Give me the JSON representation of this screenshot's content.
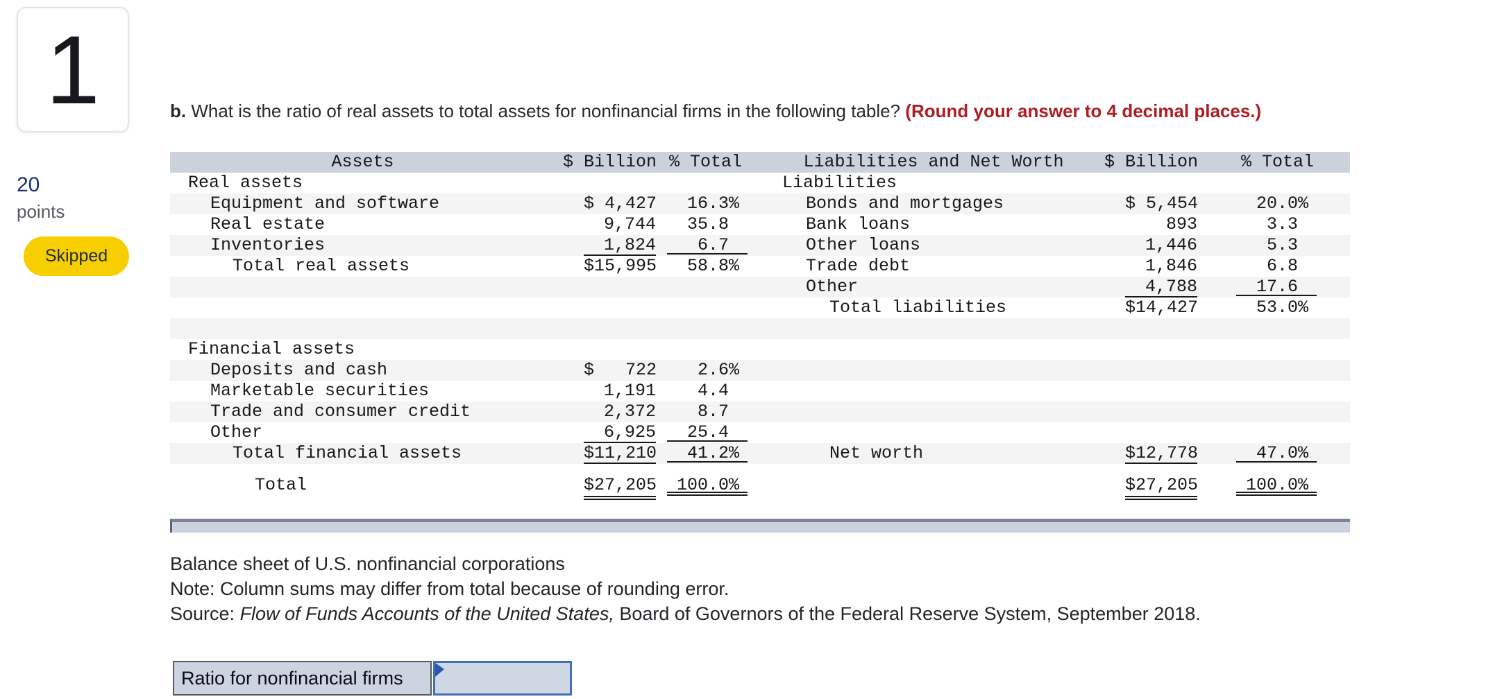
{
  "sidebar": {
    "question_number": "1",
    "points_value": "20",
    "points_label": "points",
    "status_badge": "Skipped"
  },
  "question": {
    "part_label": "b.",
    "text": " What is the ratio of real assets to total assets for nonfinancial firms in the following table? ",
    "highlight": "(Round your answer to 4 decimal places.)"
  },
  "table": {
    "headers": {
      "assets": "Assets",
      "billion": "$ Billion",
      "pct": "% Total",
      "liabilities": "Liabilities and Net Worth",
      "billion_right": "$ Billion",
      "pct_right": "% Total"
    },
    "rows": [
      {
        "shade": false,
        "l": [
          "Real assets",
          0,
          "",
          ""
        ],
        "r": [
          "Liabilities",
          0,
          "",
          ""
        ]
      },
      {
        "shade": true,
        "l": [
          "Equipment and software",
          1,
          "$ 4,427",
          "16.3%"
        ],
        "r": [
          "Bonds and mortgages",
          1,
          "$ 5,454",
          "20.0%"
        ]
      },
      {
        "shade": false,
        "l": [
          "Real estate",
          1,
          "9,744",
          "35.8 "
        ],
        "r": [
          "Bank loans",
          1,
          "893",
          "3.3 "
        ]
      },
      {
        "shade": true,
        "l": [
          "Inventories",
          1,
          "1,824",
          "6.7 "
        ],
        "r": [
          "Other loans",
          1,
          "1,446",
          "5.3 "
        ],
        "u": [
          "lb",
          "lp"
        ]
      },
      {
        "shade": false,
        "l": [
          "Total real assets",
          2,
          "$15,995",
          "58.8%"
        ],
        "r": [
          "Trade debt",
          1,
          "1,846",
          "6.8 "
        ]
      },
      {
        "shade": true,
        "l": [
          "",
          0,
          "",
          ""
        ],
        "r": [
          "Other",
          1,
          "4,788",
          "17.6 "
        ],
        "u": [
          "rb",
          "rp"
        ]
      },
      {
        "shade": false,
        "l": [
          "",
          0,
          "",
          ""
        ],
        "r": [
          "Total liabilities",
          2,
          "$14,427",
          "53.0%"
        ]
      },
      {
        "shade": true,
        "l": [
          "",
          0,
          "",
          ""
        ],
        "r": [
          "",
          0,
          "",
          ""
        ]
      },
      {
        "shade": false,
        "l": [
          "Financial assets",
          0,
          "",
          ""
        ],
        "r": [
          "",
          0,
          "",
          ""
        ]
      },
      {
        "shade": true,
        "l": [
          "Deposits and cash",
          1,
          "$   722",
          "2.6%"
        ],
        "r": [
          "",
          0,
          "",
          ""
        ]
      },
      {
        "shade": false,
        "l": [
          "Marketable securities",
          1,
          "1,191",
          "4.4 "
        ],
        "r": [
          "",
          0,
          "",
          ""
        ]
      },
      {
        "shade": true,
        "l": [
          "Trade and consumer credit",
          1,
          "2,372",
          "8.7 "
        ],
        "r": [
          "",
          0,
          "",
          ""
        ]
      },
      {
        "shade": false,
        "l": [
          "Other",
          1,
          "6,925",
          "25.4 "
        ],
        "r": [
          "",
          0,
          "",
          ""
        ],
        "u": [
          "lb",
          "lp"
        ]
      },
      {
        "shade": true,
        "l": [
          "Total financial assets",
          2,
          "$11,210",
          "41.2%"
        ],
        "r": [
          "Net worth",
          2,
          "$12,778",
          "47.0%"
        ],
        "u": [
          "lb",
          "lp",
          "rb",
          "rp"
        ]
      },
      {
        "shade": false,
        "total": true,
        "l": [
          "Total",
          3,
          "$27,205",
          "100.0%"
        ],
        "r": [
          "",
          0,
          "$27,205",
          "100.0%"
        ],
        "uu": [
          "lb",
          "lp",
          "rb",
          "rp"
        ]
      }
    ]
  },
  "notes": {
    "caption": "Balance sheet of U.S. nonfinancial corporations",
    "note": "Note: Column sums may differ from total because of rounding error.",
    "source_prefix": "Source: ",
    "source_italic": "Flow of Funds Accounts of the United States,",
    "source_suffix": " Board of Governors of the Federal Reserve System, September 2018."
  },
  "answer": {
    "label": "Ratio for nonfinancial firms",
    "value": ""
  },
  "colors": {
    "badge_bg": "#f7ce00",
    "points_blue": "#18356e",
    "highlight_red": "#ae1c24",
    "table_header_bg": "#ccd1de",
    "row_stripe": "#f4f4f5",
    "footer_bar": "#ccd2de",
    "input_border_blue": "#4170b8"
  }
}
